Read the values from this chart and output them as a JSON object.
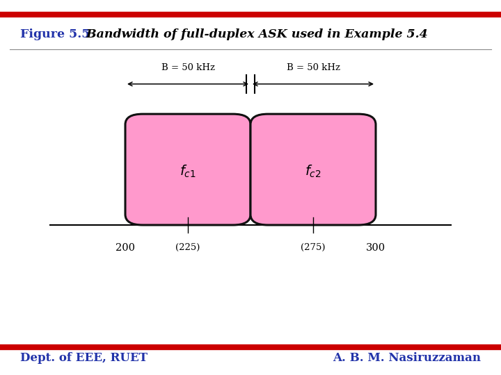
{
  "title_bold": "Figure 5.5",
  "title_italic": "  Bandwidth of full-duplex ASK used in Example 5.4",
  "title_color": "#2233AA",
  "title_italic_color": "#000000",
  "bg_color": "#FFFFFF",
  "red_bar_color": "#CC0000",
  "box_fill_color": "#FF99CC",
  "box_edge_color": "#111111",
  "bw_label": "B = 50 kHz",
  "footer_left": "Dept. of EEE, RUET",
  "footer_right": "A. B. M. Nasiruzzaman",
  "footer_color": "#2233AA"
}
